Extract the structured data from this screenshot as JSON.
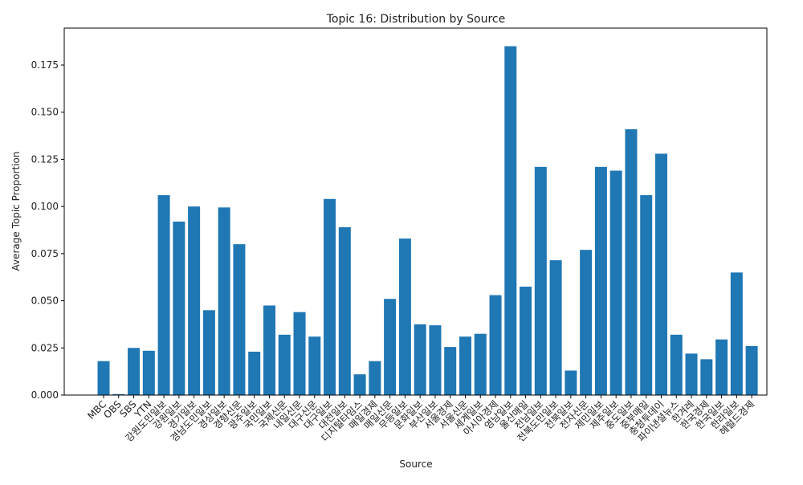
{
  "chart_data": {
    "type": "bar",
    "title": "Topic 16: Distribution by Source",
    "x_label": "Source",
    "y_label": "Average Topic Proportion",
    "color": "#1f77b4",
    "categories": [
      "MBC",
      "OBS",
      "SBS",
      "YTN",
      "강원도민일보",
      "강원일보",
      "경기일보",
      "경남도민일보",
      "경상일보",
      "경향신문",
      "광주일보",
      "국민일보",
      "국제신문",
      "내일신문",
      "대구신문",
      "대구일보",
      "대전일보",
      "디지털타임스",
      "매일경제",
      "매일신문",
      "무등일보",
      "문화일보",
      "부산일보",
      "서울경제",
      "서울신문",
      "세계일보",
      "아시아경제",
      "영남일보",
      "울산매일",
      "전남일보",
      "전북도민일보",
      "전북일보",
      "전자신문",
      "제민일보",
      "제주일보",
      "중도일보",
      "중부매일",
      "충청투데이",
      "파이낸셜뉴스",
      "한겨레",
      "한국경제",
      "한국일보",
      "한라일보",
      "헤럴드경제"
    ],
    "values": [
      0.018,
      0.0005,
      0.025,
      0.0235,
      0.106,
      0.092,
      0.1,
      0.045,
      0.0995,
      0.08,
      0.023,
      0.0475,
      0.032,
      0.044,
      0.031,
      0.104,
      0.089,
      0.011,
      0.018,
      0.051,
      0.083,
      0.0375,
      0.037,
      0.0255,
      0.031,
      0.0325,
      0.053,
      0.185,
      0.0575,
      0.121,
      0.0715,
      0.013,
      0.077,
      0.121,
      0.119,
      0.141,
      0.106,
      0.128,
      0.032,
      0.022,
      0.019,
      0.0295,
      0.065,
      0.026
    ],
    "ylim": [
      0,
      0.1946
    ],
    "yticks": [
      {
        "value": 0,
        "label": "0.000"
      },
      {
        "value": 0.025,
        "label": "0.025"
      },
      {
        "value": 0.05,
        "label": "0.050"
      },
      {
        "value": 0.075,
        "label": "0.075"
      },
      {
        "value": 0.1,
        "label": "0.100"
      },
      {
        "value": 0.125,
        "label": "0.125"
      },
      {
        "value": 0.15,
        "label": "0.150"
      },
      {
        "value": 0.175,
        "label": "0.175"
      }
    ]
  }
}
